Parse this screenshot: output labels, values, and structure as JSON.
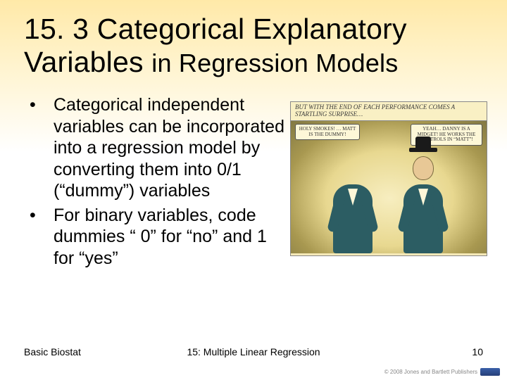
{
  "title_line1": "15. 3 Categorical Explanatory",
  "title_line2_a": "Variables ",
  "title_line2_b": "in Regression Models",
  "bullets": [
    "Categorical independent variables can be incorporated into a regression model by converting them into 0/1 (“dummy”) variables",
    "For binary variables, code dummies “ 0” for “no” and 1 for “yes”"
  ],
  "comic": {
    "caption": "BUT WITH THE END OF EACH PERFORMANCE COMES A STARTLING SURPRISE…",
    "dialog_left": "HOLY SMOKES! … MATT IS THE DUMMY!",
    "dialog_right": "YEAH… DANNY IS A MIDGET! HE WORKS THE CONTROLS IN “MATT”!"
  },
  "footer": {
    "left": "Basic Biostat",
    "center": "15: Multiple Linear Regression",
    "page": "10",
    "copyright": "© 2008 Jones and Bartlett Publishers"
  }
}
